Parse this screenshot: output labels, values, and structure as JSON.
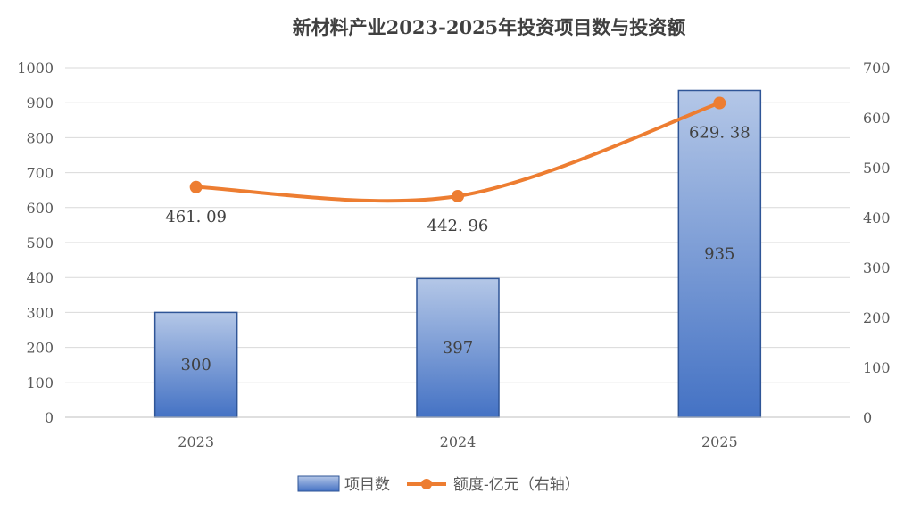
{
  "chart_data": {
    "title": "新材料产业2023-2025年投资项目数与投资额",
    "type": "bar+line",
    "categories": [
      "2023",
      "2024",
      "2025"
    ],
    "series": [
      {
        "name": "项目数",
        "type": "bar",
        "axis": "left",
        "values": [
          300,
          397,
          935
        ],
        "labels": [
          "300",
          "397",
          "935"
        ]
      },
      {
        "name": "额度-亿元（右轴）",
        "type": "line",
        "axis": "right",
        "values": [
          461.09,
          442.96,
          629.38
        ],
        "labels": [
          "461. 09",
          "442. 96",
          "629. 38"
        ]
      }
    ],
    "y_left": {
      "min": 0,
      "max": 1000,
      "ticks": [
        "0",
        "100",
        "200",
        "300",
        "400",
        "500",
        "600",
        "700",
        "800",
        "900",
        "1000"
      ]
    },
    "y_right": {
      "min": 0,
      "max": 700,
      "ticks": [
        "0",
        "100",
        "200",
        "300",
        "400",
        "500",
        "600",
        "700"
      ]
    },
    "grid": true,
    "legend": "bottom",
    "colors": {
      "bar_top": "#b4c7e7",
      "bar_bottom": "#4472c4",
      "bar_border": "#2f5597",
      "line": "#ed7d31",
      "grid": "#d9d9d9",
      "text": "#595959"
    }
  }
}
